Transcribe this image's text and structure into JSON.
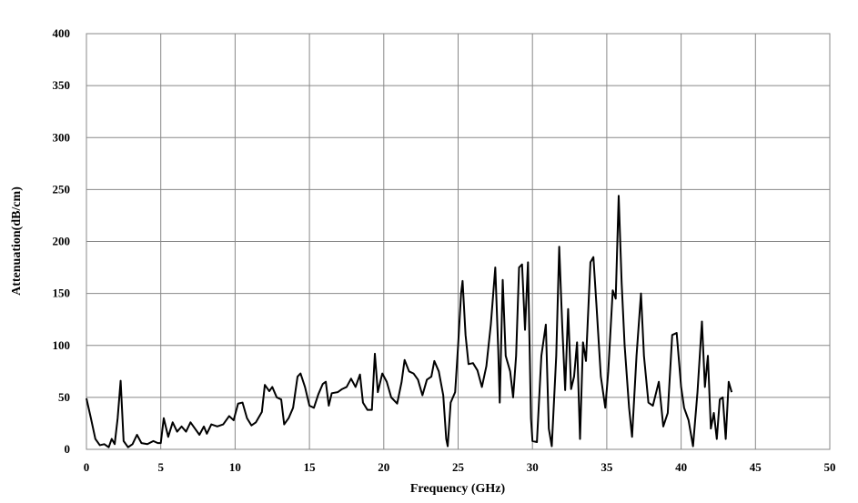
{
  "chart_data": {
    "type": "line",
    "xlabel": "Frequency (GHz)",
    "ylabel": "Attenuation(dB/cm)",
    "xlim": [
      0,
      50
    ],
    "xticks": [
      0,
      5,
      10,
      15,
      20,
      25,
      30,
      35,
      40,
      45,
      50
    ],
    "ylim": [
      0,
      400
    ],
    "yticks": [
      0,
      50,
      100,
      150,
      200,
      250,
      300,
      350,
      400
    ],
    "grid": true,
    "x": [
      0,
      0.3,
      0.6,
      0.9,
      1.2,
      1.5,
      1.7,
      1.9,
      2.1,
      2.3,
      2.5,
      2.8,
      3.1,
      3.4,
      3.7,
      4.1,
      4.5,
      4.8,
      5.0,
      5.2,
      5.5,
      5.8,
      6.1,
      6.4,
      6.7,
      7.0,
      7.3,
      7.6,
      7.9,
      8.1,
      8.4,
      8.8,
      9.2,
      9.6,
      9.9,
      10.2,
      10.5,
      10.8,
      11.1,
      11.4,
      11.8,
      12.0,
      12.3,
      12.5,
      12.8,
      13.1,
      13.3,
      13.6,
      13.9,
      14.2,
      14.4,
      14.7,
      15.0,
      15.3,
      15.6,
      15.9,
      16.1,
      16.3,
      16.5,
      16.9,
      17.2,
      17.5,
      17.8,
      18.1,
      18.4,
      18.6,
      18.9,
      19.2,
      19.4,
      19.6,
      19.9,
      20.2,
      20.5,
      20.9,
      21.2,
      21.4,
      21.7,
      22.0,
      22.3,
      22.6,
      22.9,
      23.2,
      23.4,
      23.7,
      24.0,
      24.2,
      24.3,
      24.5,
      24.8,
      25.0,
      25.2,
      25.3,
      25.5,
      25.7,
      26.0,
      26.3,
      26.6,
      26.9,
      27.2,
      27.5,
      27.7,
      27.8,
      28.0,
      28.2,
      28.5,
      28.7,
      28.9,
      29.1,
      29.3,
      29.5,
      29.7,
      29.9,
      30.0,
      30.3,
      30.6,
      30.9,
      31.1,
      31.3,
      31.6,
      31.8,
      32.0,
      32.2,
      32.4,
      32.6,
      32.8,
      33.0,
      33.2,
      33.4,
      33.6,
      33.9,
      34.1,
      34.3,
      34.6,
      34.9,
      35.1,
      35.4,
      35.6,
      35.8,
      36.0,
      36.2,
      36.5,
      36.7,
      37.0,
      37.3,
      37.5,
      37.8,
      38.1,
      38.5,
      38.8,
      39.1,
      39.4,
      39.7,
      40.0,
      40.2,
      40.5,
      40.8,
      41.1,
      41.4,
      41.6,
      41.8,
      42.0,
      42.2,
      42.4,
      42.6,
      42.8,
      43.0,
      43.2,
      43.4
    ],
    "series": [
      {
        "name": "Attenuation",
        "color": "#000000",
        "values": [
          49,
          30,
          10,
          4,
          5,
          2,
          10,
          5,
          30,
          66,
          8,
          2,
          5,
          14,
          6,
          5,
          8,
          6,
          6,
          30,
          12,
          26,
          17,
          22,
          17,
          26,
          20,
          14,
          22,
          15,
          24,
          22,
          24,
          32,
          28,
          44,
          45,
          30,
          23,
          26,
          36,
          62,
          56,
          60,
          50,
          48,
          24,
          30,
          40,
          70,
          73,
          60,
          42,
          40,
          53,
          63,
          65,
          42,
          54,
          55,
          58,
          60,
          68,
          60,
          72,
          45,
          38,
          38,
          92,
          55,
          73,
          65,
          50,
          44,
          65,
          86,
          75,
          73,
          67,
          52,
          67,
          70,
          85,
          75,
          52,
          10,
          3,
          45,
          55,
          100,
          150,
          162,
          110,
          82,
          83,
          76,
          60,
          80,
          120,
          175,
          95,
          45,
          163,
          90,
          75,
          50,
          90,
          175,
          178,
          115,
          180,
          30,
          8,
          7,
          90,
          120,
          20,
          3,
          90,
          195,
          120,
          57,
          135,
          58,
          70,
          103,
          10,
          103,
          85,
          180,
          185,
          140,
          70,
          40,
          75,
          153,
          145,
          244,
          160,
          100,
          40,
          12,
          90,
          150,
          90,
          45,
          42,
          65,
          22,
          35,
          110,
          112,
          60,
          40,
          28,
          3,
          55,
          123,
          60,
          90,
          20,
          35,
          10,
          48,
          50,
          10,
          65,
          55
        ]
      }
    ]
  }
}
